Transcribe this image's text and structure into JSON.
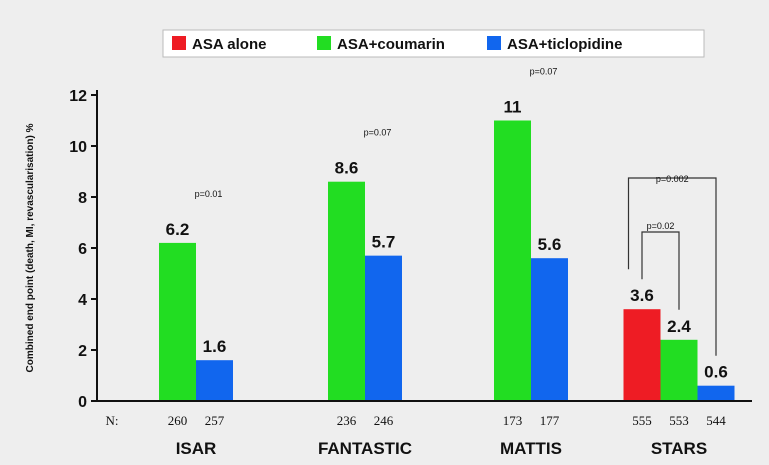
{
  "chart_data": {
    "type": "bar",
    "title": "",
    "ylabel": "Combined end point (death, MI, revascularisation) %",
    "xlabel": "",
    "ylim": [
      0,
      12
    ],
    "yticks": [
      0,
      2,
      4,
      6,
      8,
      10,
      12
    ],
    "grid": false,
    "legend_position": "top",
    "n_label": "N:",
    "series": [
      {
        "name": "ASA alone",
        "color": "#ee1c24"
      },
      {
        "name": "ASA+coumarin",
        "color": "#22dd22"
      },
      {
        "name": "ASA+ticlopidine",
        "color": "#1166ee"
      }
    ],
    "groups": [
      {
        "name": "ISAR",
        "bars": [
          {
            "series": 1,
            "value": 6.2,
            "label": "6.2",
            "n": "260"
          },
          {
            "series": 2,
            "value": 1.6,
            "label": "1.6",
            "n": "257"
          }
        ],
        "pvalues": [
          {
            "text": "p=0.01"
          }
        ]
      },
      {
        "name": "FANTASTIC",
        "bars": [
          {
            "series": 1,
            "value": 8.6,
            "label": "8.6",
            "n": "236"
          },
          {
            "series": 2,
            "value": 5.7,
            "label": "5.7",
            "n": "246"
          }
        ],
        "pvalues": [
          {
            "text": "p=0.07"
          }
        ]
      },
      {
        "name": "MATTIS",
        "bars": [
          {
            "series": 1,
            "value": 11,
            "label": "11",
            "n": "173"
          },
          {
            "series": 2,
            "value": 5.6,
            "label": "5.6",
            "n": "177"
          }
        ],
        "pvalues": [
          {
            "text": "p=0.07"
          }
        ]
      },
      {
        "name": "STARS",
        "bars": [
          {
            "series": 0,
            "value": 3.6,
            "label": "3.6",
            "n": "555"
          },
          {
            "series": 1,
            "value": 2.4,
            "label": "2.4",
            "n": "553"
          },
          {
            "series": 2,
            "value": 0.6,
            "label": "0.6",
            "n": "544"
          }
        ],
        "pvalues": [
          {
            "text": "p=0.02"
          },
          {
            "text": "p=0.002"
          }
        ]
      }
    ]
  }
}
